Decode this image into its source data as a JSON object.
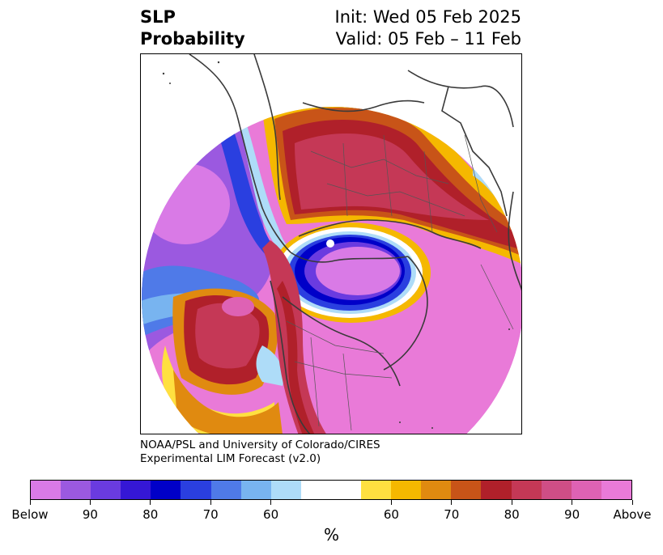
{
  "header": {
    "title_line1": "SLP",
    "title_line2": "Probability",
    "init": "Init: Wed 05 Feb 2025",
    "valid": "Valid: 05 Feb – 11 Feb"
  },
  "credit": {
    "line1": "NOAA/PSL and University of Colorado/CIRES",
    "line2": "Experimental LIM Forecast (v2.0)"
  },
  "colorbar": {
    "unit_label": "%",
    "colors": [
      "#d97ae6",
      "#9b59e0",
      "#6a3be0",
      "#3517d5",
      "#0000c8",
      "#2a3fe0",
      "#4f7ae8",
      "#78b4f0",
      "#aedcf8",
      "#ffffff",
      "#ffffff",
      "#ffe040",
      "#f5b800",
      "#e08a10",
      "#c85418",
      "#b0202a",
      "#c53856",
      "#cf4e86",
      "#de62b4",
      "#e97ad8"
    ],
    "ticks": [
      {
        "label": "Below",
        "segment_boundary": 0
      },
      {
        "label": "90",
        "segment_boundary": 2
      },
      {
        "label": "80",
        "segment_boundary": 4
      },
      {
        "label": "70",
        "segment_boundary": 6
      },
      {
        "label": "60",
        "segment_boundary": 8
      },
      {
        "label": "60",
        "segment_boundary": 12
      },
      {
        "label": "70",
        "segment_boundary": 14
      },
      {
        "label": "80",
        "segment_boundary": 16
      },
      {
        "label": "90",
        "segment_boundary": 18
      },
      {
        "label": "Above",
        "segment_boundary": 20
      }
    ]
  }
}
